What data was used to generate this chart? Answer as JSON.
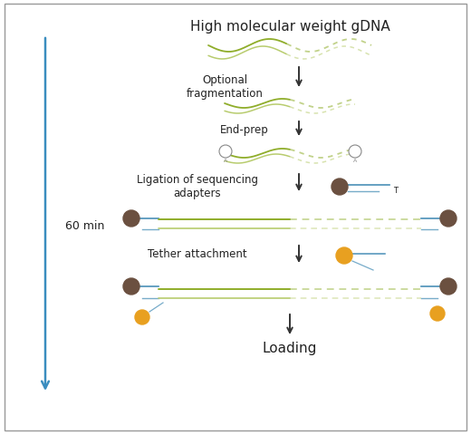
{
  "title": "High molecular weight gDNA",
  "step1_label": "Optional\nfragmentation",
  "step2_label": "End-prep",
  "step3_label": "Ligation of sequencing\nadapters",
  "step4_label": "Tether attachment",
  "step5_label": "Loading",
  "time_label": "60 min",
  "bg_color": "#ffffff",
  "border_color": "#999999",
  "text_color": "#222222",
  "arrow_color": "#333333",
  "side_arrow_color": "#3a8dbf",
  "dna_green_solid": "#8fad2a",
  "dna_green_light": "#b8cc6e",
  "dna_blue": "#4a90b8",
  "adapter_dark": "#6b5040",
  "tether_orange": "#e8a020",
  "figsize": [
    5.2,
    4.81
  ],
  "dpi": 100
}
